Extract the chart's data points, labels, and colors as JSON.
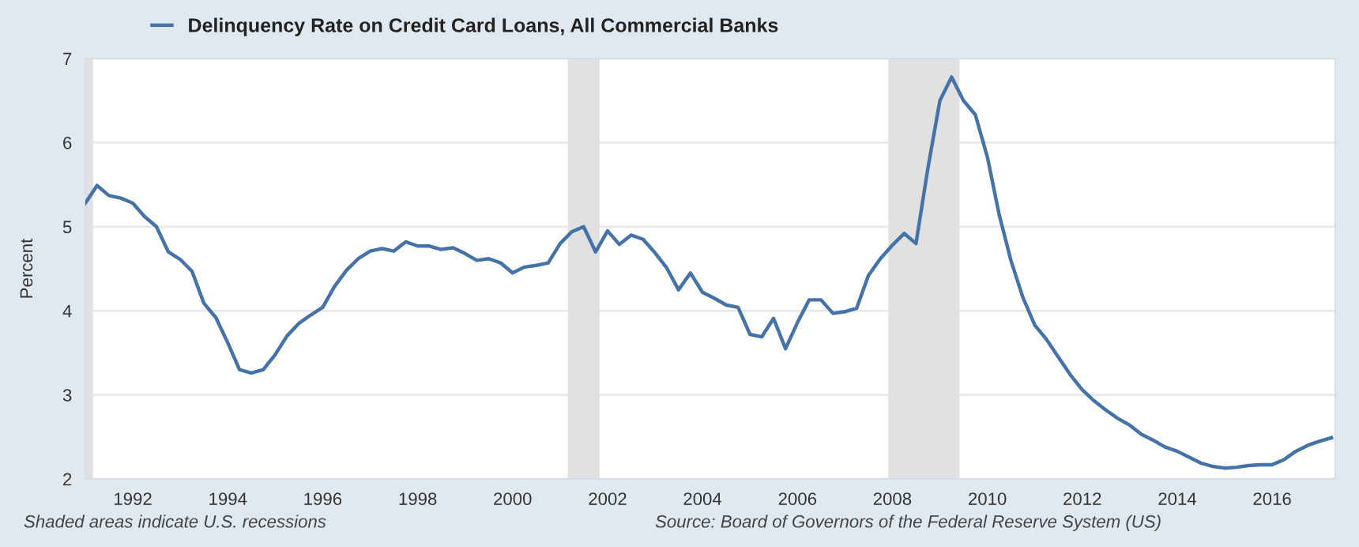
{
  "chart_data": {
    "type": "line",
    "ylabel": "Percent",
    "x": [
      "1991-01",
      "1991-04",
      "1991-07",
      "1991-10",
      "1992-01",
      "1992-04",
      "1992-07",
      "1992-10",
      "1993-01",
      "1993-04",
      "1993-07",
      "1993-10",
      "1994-01",
      "1994-04",
      "1994-07",
      "1994-10",
      "1995-01",
      "1995-04",
      "1995-07",
      "1995-10",
      "1996-01",
      "1996-04",
      "1996-07",
      "1996-10",
      "1997-01",
      "1997-04",
      "1997-07",
      "1997-10",
      "1998-01",
      "1998-04",
      "1998-07",
      "1998-10",
      "1999-01",
      "1999-04",
      "1999-07",
      "1999-10",
      "2000-01",
      "2000-04",
      "2000-07",
      "2000-10",
      "2001-01",
      "2001-04",
      "2001-07",
      "2001-10",
      "2002-01",
      "2002-04",
      "2002-07",
      "2002-10",
      "2003-01",
      "2003-04",
      "2003-07",
      "2003-10",
      "2004-01",
      "2004-04",
      "2004-07",
      "2004-10",
      "2005-01",
      "2005-04",
      "2005-07",
      "2005-10",
      "2006-01",
      "2006-04",
      "2006-07",
      "2006-10",
      "2007-01",
      "2007-04",
      "2007-07",
      "2007-10",
      "2008-01",
      "2008-04",
      "2008-07",
      "2008-10",
      "2009-01",
      "2009-04",
      "2009-07",
      "2009-10",
      "2010-01",
      "2010-04",
      "2010-07",
      "2010-10",
      "2011-01",
      "2011-04",
      "2011-07",
      "2011-10",
      "2012-01",
      "2012-04",
      "2012-07",
      "2012-10",
      "2013-01",
      "2013-04",
      "2013-07",
      "2013-10",
      "2014-01",
      "2014-04",
      "2014-07",
      "2014-10",
      "2015-01",
      "2015-04",
      "2015-07",
      "2015-10",
      "2016-01",
      "2016-04",
      "2016-07",
      "2016-10",
      "2017-01",
      "2017-04"
    ],
    "series": [
      {
        "name": "Delinquency Rate on Credit Card Loans, All Commercial Banks",
        "color": "#4572a7",
        "values": [
          5.28,
          5.49,
          5.37,
          5.34,
          5.28,
          5.12,
          5.0,
          4.7,
          4.61,
          4.47,
          4.09,
          3.92,
          3.62,
          3.3,
          3.26,
          3.3,
          3.48,
          3.7,
          3.85,
          3.95,
          4.04,
          4.29,
          4.48,
          4.62,
          4.71,
          4.74,
          4.71,
          4.82,
          4.77,
          4.77,
          4.73,
          4.75,
          4.68,
          4.6,
          4.62,
          4.57,
          4.45,
          4.52,
          4.54,
          4.57,
          4.8,
          4.94,
          5.0,
          4.7,
          4.95,
          4.79,
          4.9,
          4.85,
          4.69,
          4.51,
          4.25,
          4.45,
          4.22,
          4.15,
          4.07,
          4.04,
          3.72,
          3.69,
          3.91,
          3.55,
          3.86,
          4.13,
          4.13,
          3.97,
          3.99,
          4.03,
          4.42,
          4.62,
          4.78,
          4.92,
          4.8,
          5.7,
          6.5,
          6.78,
          6.5,
          6.33,
          5.83,
          5.15,
          4.6,
          4.16,
          3.83,
          3.66,
          3.45,
          3.24,
          3.06,
          2.93,
          2.82,
          2.72,
          2.64,
          2.53,
          2.46,
          2.38,
          2.33,
          2.26,
          2.19,
          2.15,
          2.13,
          2.14,
          2.16,
          2.17,
          2.17,
          2.23,
          2.33,
          2.4,
          2.45,
          2.49
        ]
      }
    ],
    "xlim": [
      "1991-01",
      "2017-05"
    ],
    "xticks": [
      {
        "value": "1992-01",
        "label": "1992"
      },
      {
        "value": "1994-01",
        "label": "1994"
      },
      {
        "value": "1996-01",
        "label": "1996"
      },
      {
        "value": "1998-01",
        "label": "1998"
      },
      {
        "value": "2000-01",
        "label": "2000"
      },
      {
        "value": "2002-01",
        "label": "2002"
      },
      {
        "value": "2004-01",
        "label": "2004"
      },
      {
        "value": "2006-01",
        "label": "2006"
      },
      {
        "value": "2008-01",
        "label": "2008"
      },
      {
        "value": "2010-01",
        "label": "2010"
      },
      {
        "value": "2012-01",
        "label": "2012"
      },
      {
        "value": "2014-01",
        "label": "2014"
      },
      {
        "value": "2016-01",
        "label": "2016"
      }
    ],
    "ylim": [
      2,
      7
    ],
    "yticks": [
      2,
      3,
      4,
      5,
      6,
      7
    ],
    "bands": [
      {
        "axis": "x",
        "from": "1991-01",
        "to": "1991-03",
        "color": "#e1e1e1"
      },
      {
        "axis": "x",
        "from": "2001-03",
        "to": "2001-11",
        "color": "#e1e1e1"
      },
      {
        "axis": "x",
        "from": "2007-12",
        "to": "2009-06",
        "color": "#e1e1e1"
      }
    ],
    "grid": "y",
    "legend": "top left",
    "line_style": "solid",
    "marker": "none",
    "annotations": [
      "Shaded areas indicate U.S. recessions",
      "Source: Board of Governors of the Federal Reserve System (US)"
    ]
  }
}
